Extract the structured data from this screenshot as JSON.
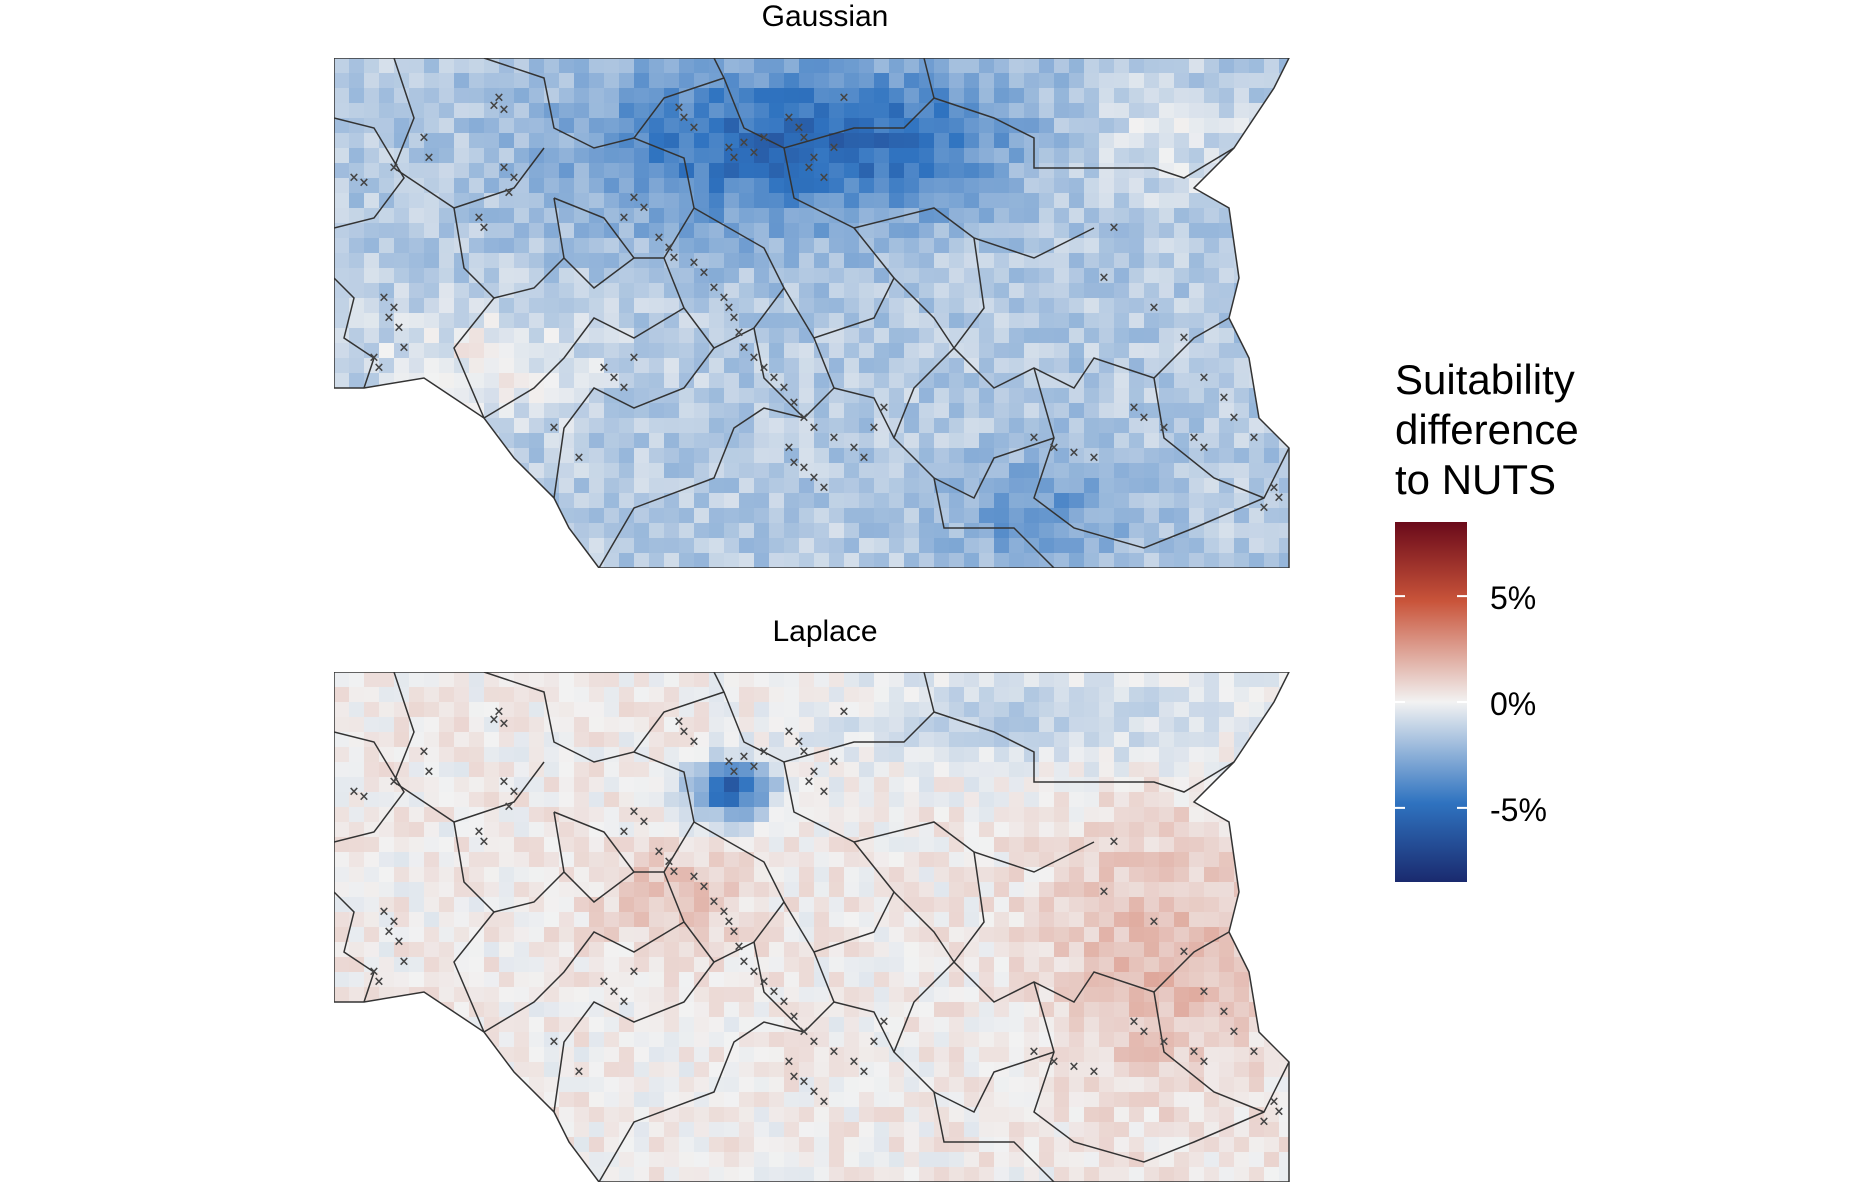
{
  "panels": [
    {
      "title": "Gaussian",
      "mode": "gaussian"
    },
    {
      "title": "Laplace",
      "mode": "laplace"
    }
  ],
  "legend": {
    "title_lines": [
      "Suitability",
      "difference",
      "to NUTS"
    ],
    "ticks": [
      {
        "label": "5%",
        "value": 5
      },
      {
        "label": "0%",
        "value": 0
      },
      {
        "label": "-5%",
        "value": -5
      }
    ],
    "range": [
      -8.5,
      8.5
    ],
    "colors": {
      "low": "#1a2a6e",
      "mid_low": "#2f73c0",
      "mid": "#f2f2f2",
      "mid_high": "#c9543a",
      "high": "#6a0a1a"
    }
  },
  "marker": {
    "symbol": "×",
    "color": "#444444"
  },
  "boundary_color": "#333333"
}
